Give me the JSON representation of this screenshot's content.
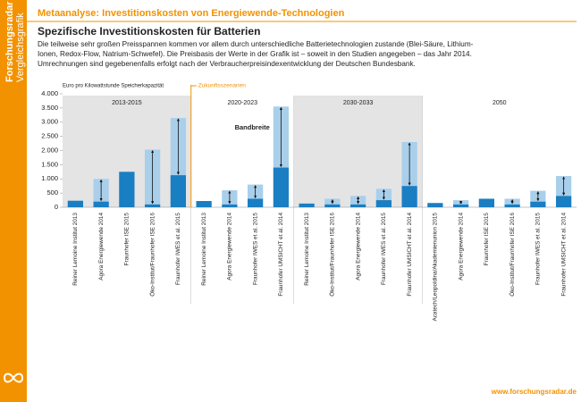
{
  "sidebar": {
    "lines": [
      "Forschungsradar",
      "Vergleichsgrafik"
    ]
  },
  "header": {
    "kicker": "Metaanalyse: Investitionskosten von Energiewende-Technologien",
    "title": "Spezifische Investitionskosten für Batterien",
    "description": [
      "Die teilweise sehr großen Preisspannen kommen vor allem durch unterschiedliche Batterietechnologien zustande (Blei-Säure, Lithium-",
      "Ionen, Redox-Flow, Natrium-Schwefel).  Die Preisbasis der Werte in der Grafik ist – soweit in den Studien angegeben – das Jahr 2014.",
      "Umrechnungen sind gegebenenfalls erfolgt nach der Verbraucherpreisindexentwicklung der Deutschen Bundesbank."
    ]
  },
  "chart_data": {
    "type": "range-bar",
    "y_label": "Euro pro Kilowattstunde Speicherkapazität",
    "annotations": [
      "Zukunftsszenarien",
      "Bandbreite"
    ],
    "low_color": "#1a7ec2",
    "high_color": "#a9cfeb",
    "shade_color": "#e4e4e4",
    "marker_color": "#f39200",
    "ylim": [
      0,
      4000
    ],
    "yticks": [
      0,
      500,
      {
        "value": 1000,
        "label": "1.000"
      },
      {
        "value": 1500,
        "label": "1.500"
      },
      {
        "value": 2000,
        "label": "2.000"
      },
      {
        "value": 2500,
        "label": "2.500"
      },
      {
        "value": 3000,
        "label": "3.000"
      },
      {
        "value": 3500,
        "label": "3.500"
      },
      {
        "value": 4000,
        "label": "4.000"
      }
    ],
    "groups": [
      {
        "label": "2013-2015",
        "shaded": true,
        "categories": [
          "Reiner Lemoine Institut 2013",
          "Agora Energiewende 2014",
          "Fraunhofer ISE 2015",
          "Öko-Institut/Fraunhofer ISE 2016",
          "Fraunhofer IWES et al. 2015"
        ],
        "low": [
          230,
          200,
          1250,
          100,
          1130
        ],
        "high": [
          null,
          1000,
          null,
          2030,
          3150
        ]
      },
      {
        "label": "2020-2023",
        "shaded": false,
        "categories": [
          "Reiner Lemoine Institut 2013",
          "Agora Energiewende 2014",
          "Fraunhofer IWES et al. 2015",
          "Fraunhofer UMSICHT et al. 2014"
        ],
        "low": [
          220,
          100,
          300,
          1400
        ],
        "high": [
          null,
          600,
          800,
          3550
        ]
      },
      {
        "label": "2030-2033",
        "shaded": true,
        "categories": [
          "Reiner Lemoine Institut 2013",
          "Öko-Institut/Fraunhofer ISE 2016",
          "Agora Energiewende 2014",
          "Fraunhofer IWES et al. 2015",
          "Fraunhofer UMSICHT et al. 2014"
        ],
        "low": [
          130,
          100,
          100,
          250,
          750
        ],
        "high": [
          null,
          300,
          400,
          650,
          2300
        ]
      },
      {
        "label": "2050",
        "shaded": false,
        "categories": [
          "Acatech/Leopoldina/Akademienunion 2015",
          "Agora Energiewende 2014",
          "Fraunhofer ISE 2015",
          "Öko-Institut/Fraunhofer ISE 2016",
          "Fraunhofer IWES et al. 2015",
          "Fraunhofer UMSICHT et al. 2014"
        ],
        "low": [
          150,
          100,
          300,
          100,
          200,
          400
        ],
        "high": [
          null,
          250,
          null,
          300,
          580,
          1100
        ]
      }
    ]
  },
  "footer": {
    "url": "www.forschungsradar.de"
  }
}
